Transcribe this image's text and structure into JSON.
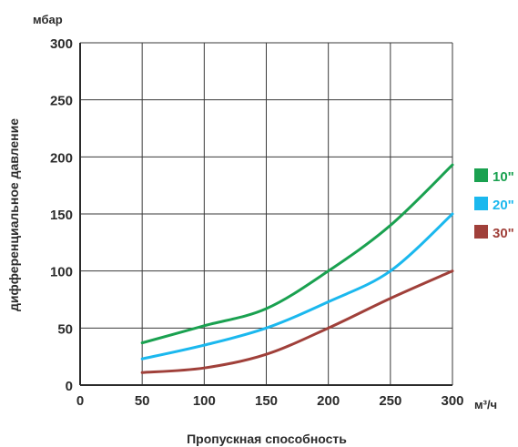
{
  "chart_data": {
    "type": "line",
    "title": "",
    "ylabel_unit": "мбар",
    "xlabel_unit": "м³/ч",
    "xlabel": "Пропускная способность",
    "ylabel": "дифференциальное давление",
    "xlim": [
      0,
      300
    ],
    "ylim": [
      0,
      300
    ],
    "x_ticks": [
      "0",
      "50",
      "100",
      "150",
      "200",
      "250",
      "300"
    ],
    "y_ticks": [
      "0",
      "50",
      "100",
      "150",
      "200",
      "250",
      "300"
    ],
    "grid": true,
    "legend_position": "right",
    "series": [
      {
        "name": "10\"",
        "color": "#1aa150",
        "x": [
          50,
          100,
          150,
          200,
          250,
          300
        ],
        "y": [
          37,
          52,
          67,
          100,
          140,
          193
        ]
      },
      {
        "name": "20\"",
        "color": "#1bb8ee",
        "x": [
          50,
          100,
          150,
          200,
          250,
          300
        ],
        "y": [
          23,
          35,
          50,
          73,
          100,
          150
        ]
      },
      {
        "name": "30\"",
        "color": "#a0403a",
        "x": [
          50,
          100,
          150,
          200,
          250,
          300
        ],
        "y": [
          11,
          15,
          27,
          50,
          76,
          100
        ]
      }
    ]
  }
}
